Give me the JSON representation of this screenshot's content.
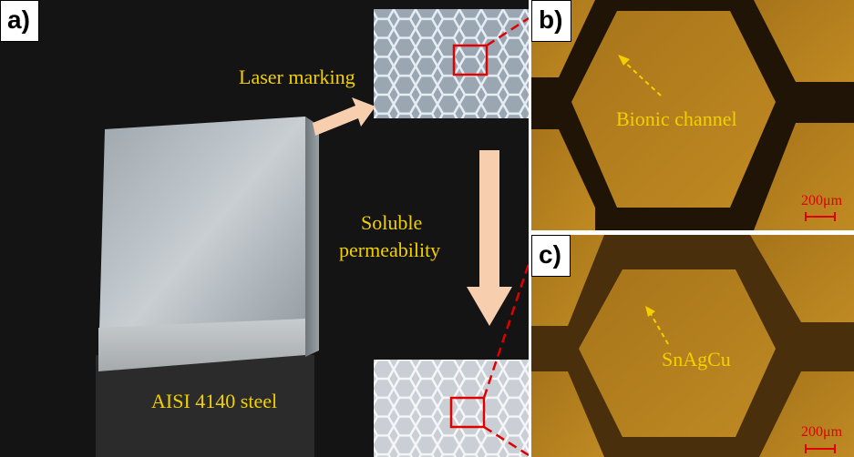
{
  "panels": {
    "a": {
      "letter": "a)",
      "label_laser": "Laser marking",
      "label_soluble": "Soluble",
      "label_perm": "permeability",
      "label_steel": "AISI 4140 steel"
    },
    "b": {
      "letter": "b)",
      "label": "Bionic channel",
      "scale": "200μm"
    },
    "c": {
      "letter": "c)",
      "label": "SnAgCu",
      "scale": "200μm"
    }
  },
  "colors": {
    "label": "#f2d000",
    "scale": "#e00000",
    "arrow": "#f7cfae"
  }
}
